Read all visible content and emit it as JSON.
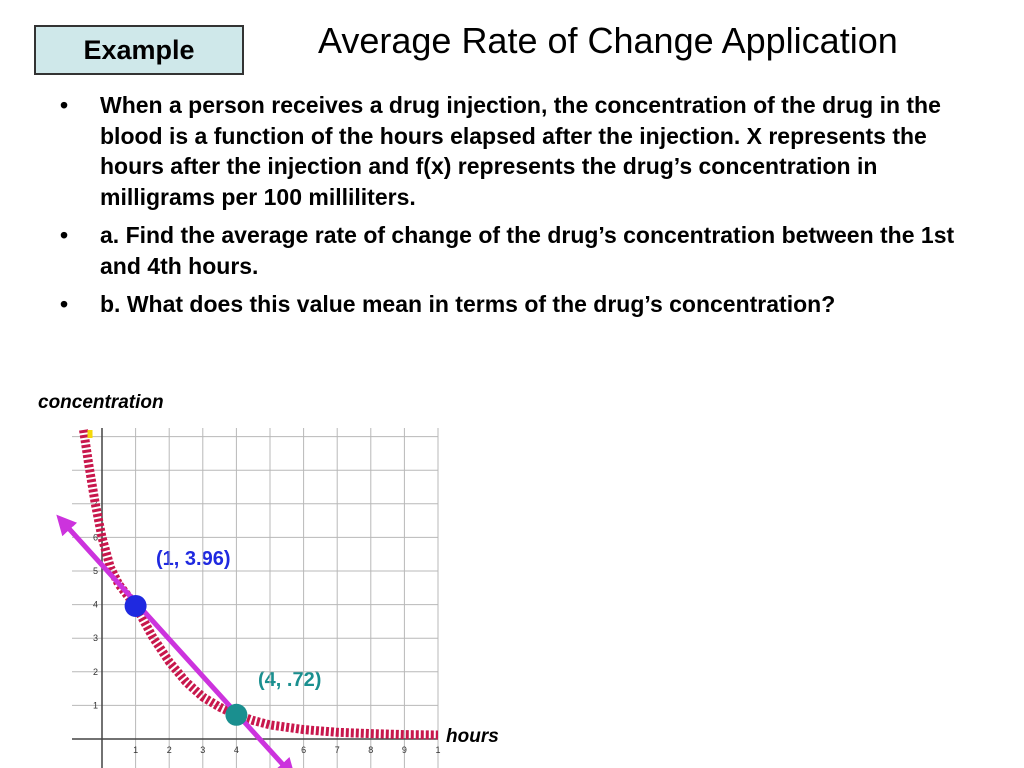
{
  "slide": {
    "example_label": "Example",
    "title": "Average Rate of Change Application",
    "bullets": [
      "When a person receives a drug injection, the concentration of the drug in the blood is a function of the hours elapsed after the injection. X represents the hours after the injection and f(x) represents the drug’s concentration in milligrams per 100 milliliters.",
      "a. Find the average rate of change of the drug’s concentration between the 1st and 4th hours.",
      "b. What does this value mean in terms of the drug’s concentration?"
    ]
  },
  "chart_data": {
    "type": "line",
    "xlabel": "hours",
    "ylabel": "concentration",
    "xlim": [
      -0.5,
      10
    ],
    "ylim": [
      -1,
      9
    ],
    "x_ticks": [
      "1",
      "2",
      "3",
      "4",
      "",
      "6",
      "7",
      "8",
      "9",
      "1"
    ],
    "y_ticks": [
      "1",
      "2",
      "3",
      "4",
      "5",
      "6",
      "7",
      "",
      ""
    ],
    "grid": true,
    "series": [
      {
        "role": "curve",
        "color": "#c8174c",
        "points": [
          [
            -0.55,
            9.2
          ],
          [
            -0.4,
            8.2
          ],
          [
            -0.2,
            7.0
          ],
          [
            0,
            6.0
          ],
          [
            0.25,
            5.1
          ],
          [
            0.5,
            4.6
          ],
          [
            1,
            3.96
          ],
          [
            1.5,
            3.05
          ],
          [
            2,
            2.3
          ],
          [
            2.5,
            1.7
          ],
          [
            3,
            1.25
          ],
          [
            3.5,
            0.95
          ],
          [
            4,
            0.72
          ],
          [
            4.5,
            0.55
          ],
          [
            5,
            0.42
          ],
          [
            6,
            0.28
          ],
          [
            7,
            0.2
          ],
          [
            8,
            0.16
          ],
          [
            9,
            0.13
          ],
          [
            10,
            0.12
          ]
        ]
      },
      {
        "role": "secant",
        "color": "#cc33dd",
        "points": [
          [
            -1.2,
            6.5
          ],
          [
            5.6,
            -1.0
          ]
        ]
      }
    ],
    "points": [
      {
        "x": 1,
        "y": 3.96,
        "label": "(1, 3.96)",
        "color": "#1f29e0",
        "label_color": "#1f29e0"
      },
      {
        "x": 4,
        "y": 0.72,
        "label": "(4, .72)",
        "color": "#1a8f8f",
        "label_color": "#1a8f8f"
      }
    ]
  }
}
